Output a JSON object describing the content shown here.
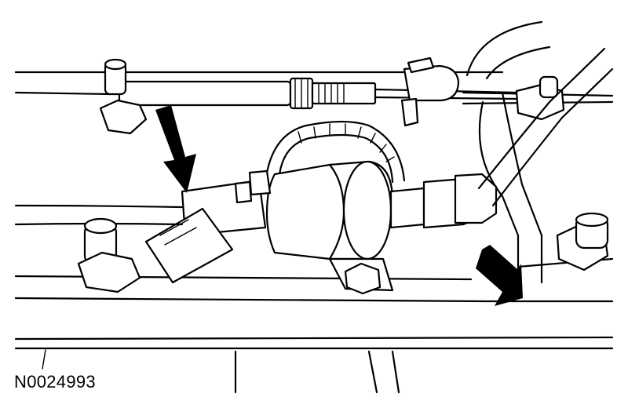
{
  "figure": {
    "label": "N0024993",
    "arrow_color": "#000000",
    "line_color": "#000000",
    "background": "#ffffff"
  }
}
